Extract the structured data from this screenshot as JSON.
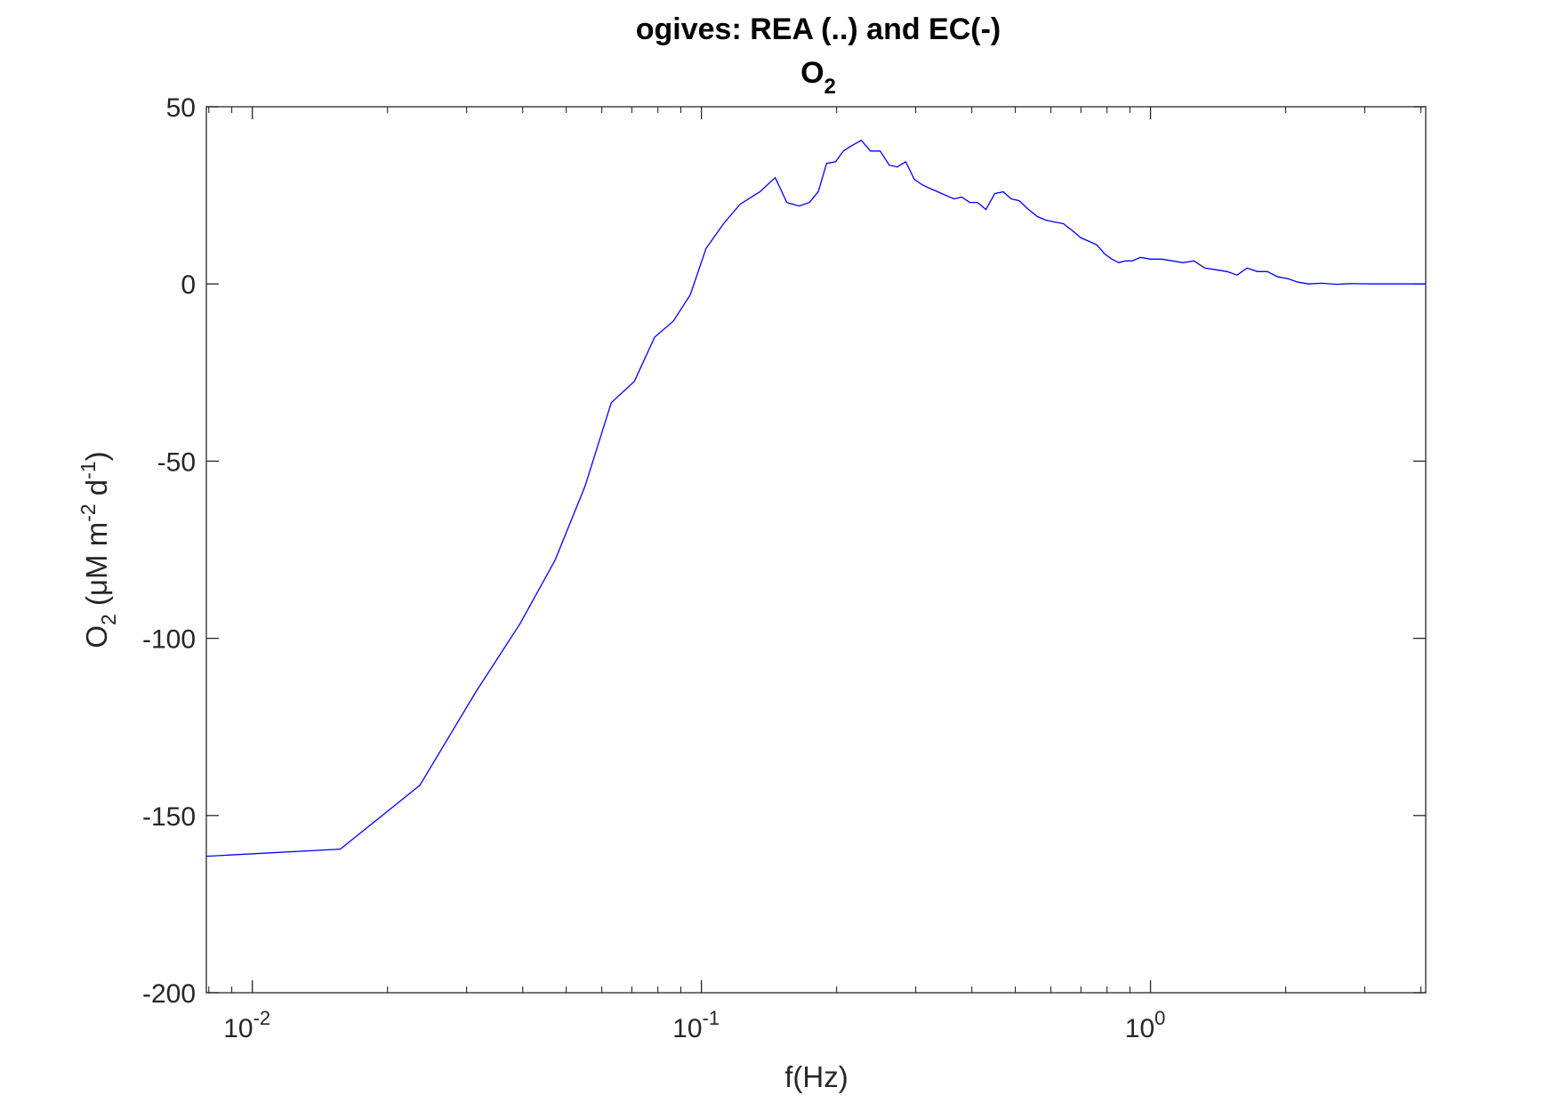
{
  "chart_data": {
    "type": "line",
    "title": "ogives: REA (..) and EC(-)",
    "subtitle": "O",
    "subtitle_sub": "2",
    "xlabel": "f(Hz)",
    "ylabel": {
      "prefix": "O",
      "sub": "2",
      "unit_open": " (μM m",
      "exp1": "-2",
      "mid": " d",
      "exp2": "-1",
      "close": ")"
    },
    "xscale": "log",
    "xlim": [
      0.0079,
      4.1
    ],
    "ylim": [
      -200,
      50
    ],
    "yticks": [
      50,
      0,
      -50,
      -100,
      -150,
      -200
    ],
    "yticklabels": [
      "50",
      "0",
      "-50",
      "-100",
      "-150",
      "-200"
    ],
    "xticks": [
      {
        "value": 0.01,
        "base": "10",
        "exp": "-2"
      },
      {
        "value": 0.1,
        "base": "10",
        "exp": "-1"
      },
      {
        "value": 1,
        "base": "10",
        "exp": "0"
      }
    ],
    "grid": false,
    "line_color": "#0000ff",
    "series": [
      {
        "x": [
          0.0079,
          0.0157,
          0.0236,
          0.0315,
          0.0394,
          0.0472,
          0.0551,
          0.063,
          0.0709,
          0.0787,
          0.0866,
          0.0945,
          0.1024,
          0.112,
          0.122,
          0.135,
          0.146,
          0.155,
          0.165,
          0.174,
          0.182,
          0.19,
          0.199,
          0.207,
          0.216,
          0.227,
          0.238,
          0.25,
          0.262,
          0.273,
          0.285,
          0.298,
          0.31,
          0.322,
          0.336,
          0.35,
          0.365,
          0.38,
          0.396,
          0.412,
          0.43,
          0.45,
          0.47,
          0.49,
          0.51,
          0.535,
          0.56,
          0.585,
          0.61,
          0.64,
          0.67,
          0.7,
          0.73,
          0.76,
          0.79,
          0.82,
          0.85,
          0.88,
          0.91,
          0.95,
          1.0,
          1.06,
          1.12,
          1.18,
          1.25,
          1.32,
          1.4,
          1.48,
          1.56,
          1.64,
          1.73,
          1.82,
          1.92,
          2.02,
          2.13,
          2.25,
          2.4,
          2.6,
          2.8,
          3.1,
          3.5,
          4.1
        ],
        "y": [
          -161.5,
          -159.5,
          -141.5,
          -115,
          -96,
          -78,
          -57,
          -33.5,
          -27.5,
          -15,
          -10.5,
          -3,
          10,
          17,
          22.5,
          26,
          30,
          23,
          22,
          23,
          26,
          34,
          34.5,
          37.5,
          39,
          40.5,
          37.5,
          37.5,
          33.5,
          33,
          34.5,
          29.5,
          28,
          27,
          26,
          25,
          24,
          24.5,
          23,
          23,
          21,
          25.5,
          26,
          24,
          23.5,
          21,
          19,
          18,
          17.5,
          17,
          15,
          13,
          12,
          11,
          8.5,
          7,
          6,
          6.5,
          6.5,
          7.5,
          7,
          7,
          6.5,
          6,
          6.5,
          4.5,
          4,
          3.5,
          2.5,
          4.5,
          3.5,
          3.5,
          2,
          1.5,
          0.5,
          0,
          0.2,
          -0.1,
          0.1,
          0,
          0,
          0
        ]
      }
    ]
  }
}
